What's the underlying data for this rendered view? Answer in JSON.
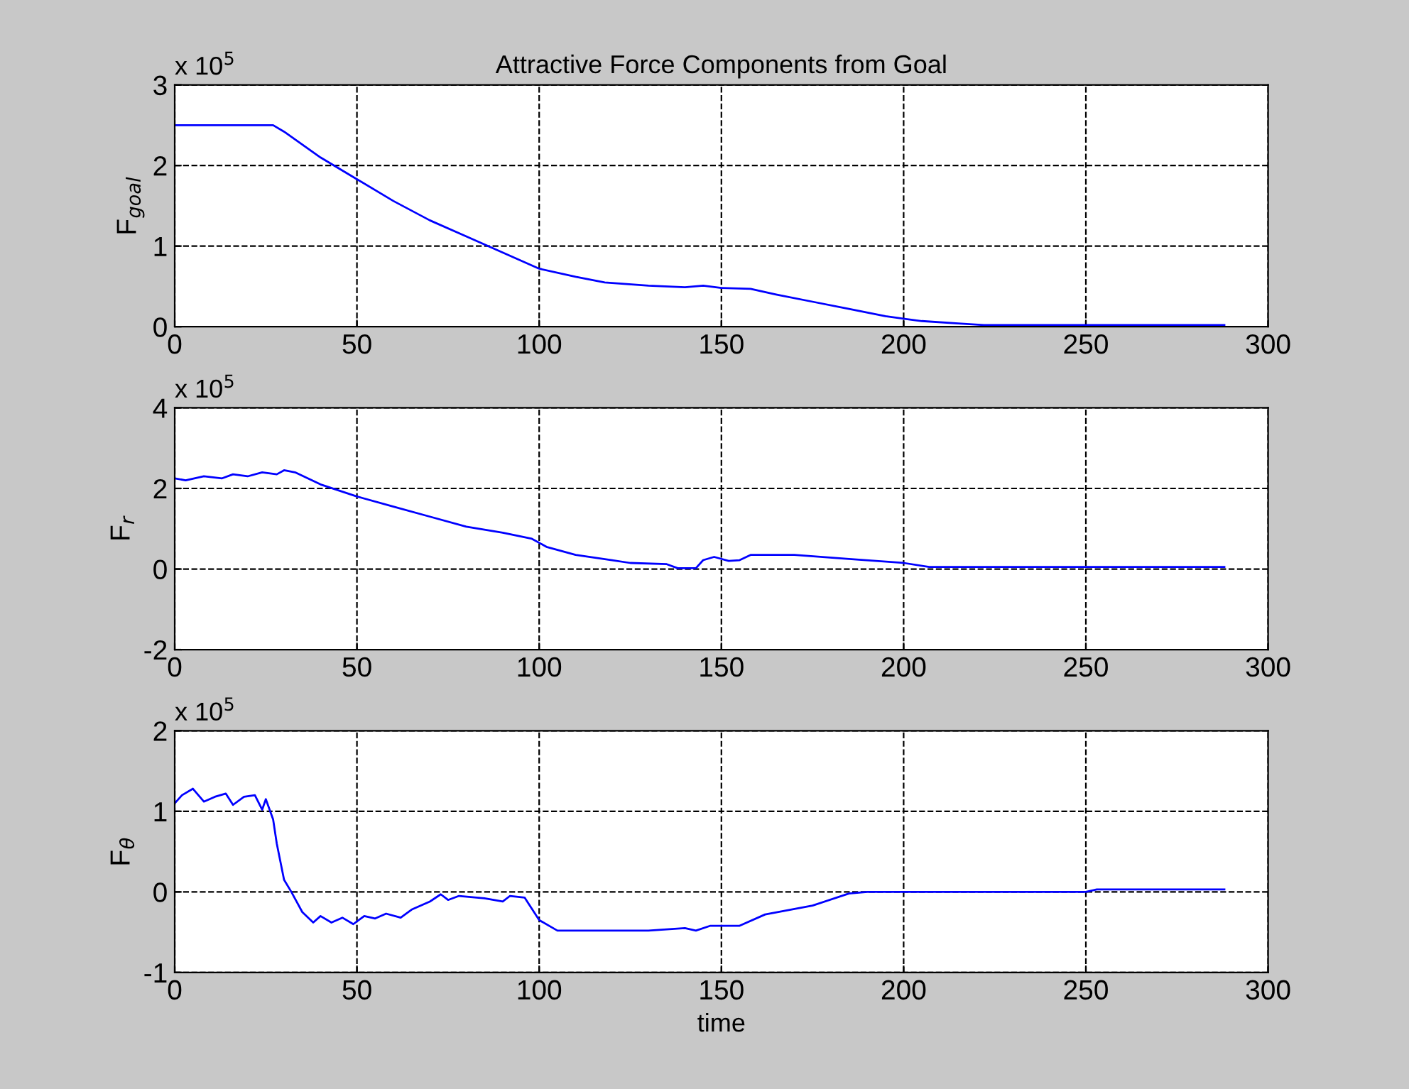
{
  "chart_data": [
    {
      "type": "line",
      "title": "Attractive Force Components from Goal",
      "ylabel": "F$_{goal}$",
      "annotations": [
        "x 10$^{5}$"
      ],
      "xlim": [
        0,
        300
      ],
      "xticks": [
        0,
        50,
        100,
        150,
        200,
        250,
        300
      ],
      "ylim": [
        0,
        3
      ],
      "yticks": [
        0,
        1,
        2,
        3
      ],
      "grid": true,
      "series": [
        {
          "color": "#0000ff",
          "x": [
            0,
            27,
            30,
            40,
            50,
            60,
            70,
            80,
            90,
            100,
            110,
            118,
            130,
            140,
            145,
            150,
            158,
            165,
            175,
            185,
            195,
            205,
            215,
            222,
            250,
            288
          ],
          "values": [
            2.5,
            2.5,
            2.42,
            2.1,
            1.83,
            1.56,
            1.32,
            1.12,
            0.92,
            0.72,
            0.62,
            0.55,
            0.51,
            0.49,
            0.51,
            0.48,
            0.47,
            0.4,
            0.31,
            0.22,
            0.13,
            0.07,
            0.04,
            0.02,
            0.02,
            0.02
          ]
        }
      ]
    },
    {
      "type": "line",
      "ylabel": "F$_{r}$",
      "annotations": [
        "x 10$^{5}$"
      ],
      "xlim": [
        0,
        300
      ],
      "xticks": [
        0,
        50,
        100,
        150,
        200,
        250,
        300
      ],
      "ylim": [
        -2,
        4
      ],
      "yticks": [
        -2,
        0,
        2,
        4
      ],
      "grid": true,
      "series": [
        {
          "color": "#0000ff",
          "x": [
            0,
            3,
            8,
            13,
            16,
            20,
            24,
            28,
            30,
            33,
            40,
            50,
            60,
            70,
            80,
            90,
            98,
            102,
            110,
            120,
            125,
            135,
            138,
            143,
            145,
            148,
            152,
            155,
            158,
            170,
            185,
            200,
            207,
            250,
            288
          ],
          "values": [
            2.25,
            2.2,
            2.3,
            2.25,
            2.35,
            2.3,
            2.4,
            2.35,
            2.45,
            2.4,
            2.1,
            1.8,
            1.55,
            1.3,
            1.05,
            0.9,
            0.75,
            0.55,
            0.35,
            0.22,
            0.15,
            0.12,
            0.02,
            0.02,
            0.22,
            0.3,
            0.2,
            0.22,
            0.35,
            0.35,
            0.25,
            0.15,
            0.05,
            0.05,
            0.05
          ]
        }
      ]
    },
    {
      "type": "line",
      "xlabel": "time",
      "ylabel": "F$_{θ}$",
      "annotations": [
        "x 10$^{5}$"
      ],
      "xlim": [
        0,
        300
      ],
      "xticks": [
        0,
        50,
        100,
        150,
        200,
        250,
        300
      ],
      "ylim": [
        -1,
        2
      ],
      "yticks": [
        -1,
        0,
        1,
        2
      ],
      "grid": true,
      "series": [
        {
          "color": "#0000ff",
          "x": [
            0,
            2,
            5,
            8,
            11,
            14,
            16,
            19,
            22,
            24,
            25,
            27,
            28,
            30,
            32,
            35,
            38,
            40,
            43,
            46,
            49,
            52,
            55,
            58,
            62,
            65,
            70,
            73,
            75,
            78,
            85,
            90,
            92,
            96,
            100,
            105,
            130,
            140,
            143,
            147,
            155,
            162,
            175,
            185,
            190,
            250,
            253,
            288
          ],
          "values": [
            1.1,
            1.2,
            1.28,
            1.12,
            1.18,
            1.22,
            1.08,
            1.18,
            1.2,
            1.02,
            1.15,
            0.9,
            0.6,
            0.15,
            0.0,
            -0.25,
            -0.38,
            -0.3,
            -0.38,
            -0.32,
            -0.4,
            -0.3,
            -0.33,
            -0.27,
            -0.32,
            -0.22,
            -0.12,
            -0.03,
            -0.1,
            -0.05,
            -0.08,
            -0.12,
            -0.05,
            -0.07,
            -0.35,
            -0.48,
            -0.48,
            -0.45,
            -0.48,
            -0.42,
            -0.42,
            -0.28,
            -0.17,
            -0.02,
            0.0,
            0.0,
            0.03,
            0.03
          ]
        }
      ]
    }
  ]
}
